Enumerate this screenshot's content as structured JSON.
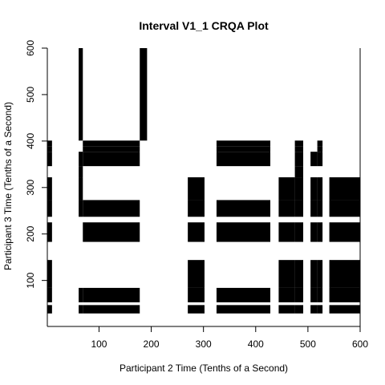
{
  "chart_data": {
    "type": "heatmap",
    "title": "Interval V1_1 CRQA Plot",
    "xlabel": "Participant 2 Time (Tenths of a Second)",
    "ylabel": "Participant 3 Time (Tenths of a Second)",
    "xlim": [
      1,
      600
    ],
    "ylim": [
      1,
      600
    ],
    "xticks": [
      100,
      200,
      300,
      400,
      500,
      600
    ],
    "yticks": [
      100,
      200,
      300,
      400,
      500,
      600
    ],
    "x_runs": [
      [
        1,
        10
      ],
      [
        61,
        69
      ],
      [
        69,
        178
      ],
      [
        178,
        192
      ],
      [
        270,
        302
      ],
      [
        325,
        428
      ],
      [
        444,
        475
      ],
      [
        475,
        491
      ],
      [
        505,
        518
      ],
      [
        518,
        528
      ],
      [
        541,
        600
      ]
    ],
    "y_runs": [
      [
        1,
        17
      ],
      [
        29,
        47
      ],
      [
        47,
        53
      ],
      [
        53,
        84
      ],
      [
        84,
        144
      ],
      [
        144,
        183
      ],
      [
        183,
        225
      ],
      [
        225,
        237
      ],
      [
        237,
        273
      ],
      [
        273,
        322
      ],
      [
        322,
        346
      ],
      [
        346,
        377
      ],
      [
        377,
        389
      ],
      [
        389,
        401
      ],
      [
        401,
        600
      ]
    ],
    "color_on": "#000000",
    "color_off": "#ffffff",
    "recurrence_cells": [
      [
        0,
        1
      ],
      [
        0,
        3
      ],
      [
        0,
        4
      ],
      [
        0,
        6
      ],
      [
        0,
        8
      ],
      [
        0,
        9
      ],
      [
        0,
        11
      ],
      [
        0,
        12
      ],
      [
        0,
        13
      ],
      [
        1,
        1
      ],
      [
        1,
        3
      ],
      [
        1,
        8
      ],
      [
        1,
        9
      ],
      [
        1,
        10
      ],
      [
        1,
        11
      ],
      [
        1,
        14
      ],
      [
        2,
        1
      ],
      [
        2,
        3
      ],
      [
        2,
        6
      ],
      [
        2,
        8
      ],
      [
        2,
        11
      ],
      [
        2,
        12
      ],
      [
        2,
        13
      ],
      [
        3,
        14
      ],
      [
        4,
        1
      ],
      [
        4,
        3
      ],
      [
        4,
        4
      ],
      [
        4,
        6
      ],
      [
        4,
        8
      ],
      [
        4,
        9
      ],
      [
        5,
        1
      ],
      [
        5,
        3
      ],
      [
        5,
        6
      ],
      [
        5,
        8
      ],
      [
        5,
        11
      ],
      [
        5,
        12
      ],
      [
        5,
        13
      ],
      [
        6,
        1
      ],
      [
        6,
        3
      ],
      [
        6,
        4
      ],
      [
        6,
        6
      ],
      [
        6,
        8
      ],
      [
        6,
        9
      ],
      [
        7,
        1
      ],
      [
        7,
        3
      ],
      [
        7,
        4
      ],
      [
        7,
        6
      ],
      [
        7,
        8
      ],
      [
        7,
        9
      ],
      [
        7,
        10
      ],
      [
        7,
        11
      ],
      [
        7,
        12
      ],
      [
        7,
        13
      ],
      [
        8,
        1
      ],
      [
        8,
        3
      ],
      [
        8,
        4
      ],
      [
        8,
        6
      ],
      [
        8,
        8
      ],
      [
        8,
        9
      ],
      [
        8,
        11
      ],
      [
        9,
        1
      ],
      [
        9,
        3
      ],
      [
        9,
        4
      ],
      [
        9,
        6
      ],
      [
        9,
        8
      ],
      [
        9,
        9
      ],
      [
        9,
        11
      ],
      [
        9,
        12
      ],
      [
        9,
        13
      ],
      [
        10,
        1
      ],
      [
        10,
        3
      ],
      [
        10,
        4
      ],
      [
        10,
        6
      ],
      [
        10,
        8
      ],
      [
        10,
        9
      ]
    ]
  }
}
